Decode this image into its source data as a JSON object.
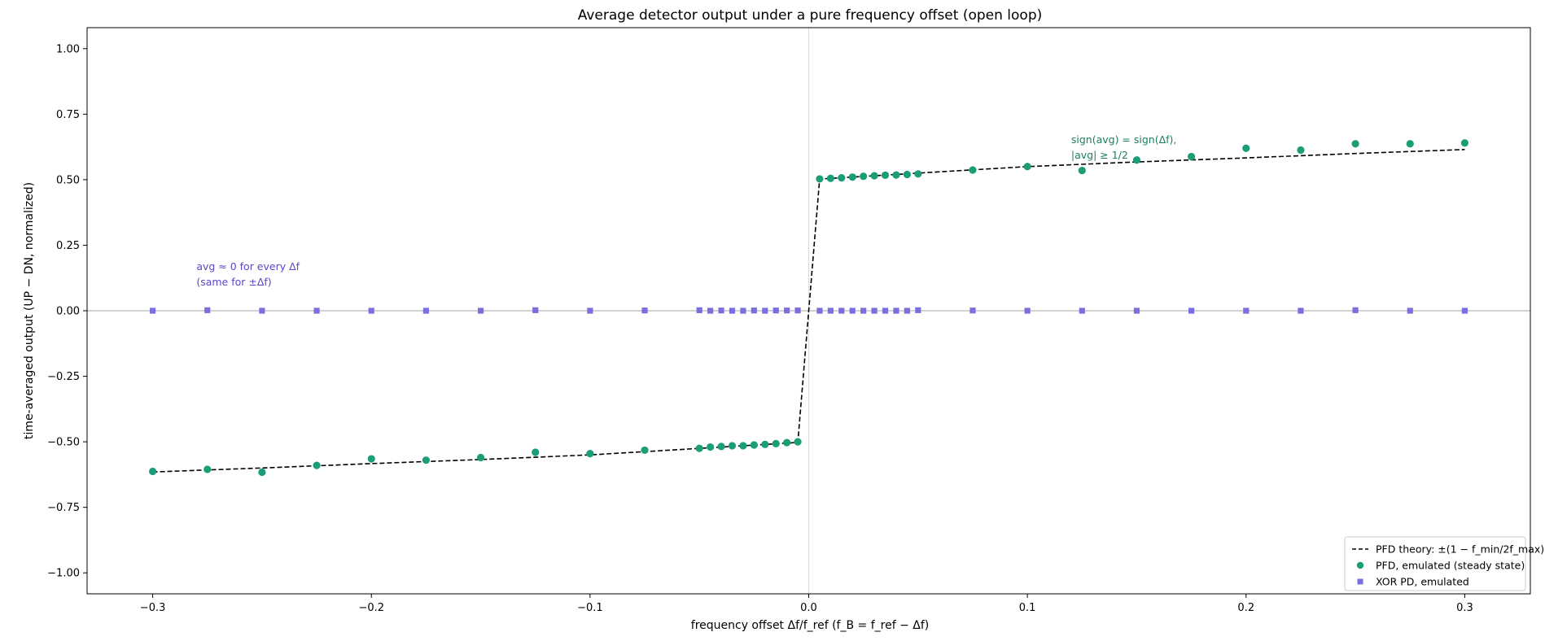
{
  "chart_data": {
    "type": "scatter",
    "title": "Average detector output under a pure frequency offset (open loop)",
    "xlabel": "frequency offset  Δf/f_ref   (f_B = f_ref − Δf)",
    "ylabel": "time-averaged output  (UP − DN, normalized)",
    "xlim": [
      -0.33,
      0.33
    ],
    "ylim": [
      -1.08,
      1.08
    ],
    "xticks": [
      -0.3,
      -0.2,
      -0.1,
      0.0,
      0.1,
      0.2,
      0.3
    ],
    "xtick_labels": [
      "−0.3",
      "−0.2",
      "−0.1",
      "0.0",
      "0.1",
      "0.2",
      "0.3"
    ],
    "yticks": [
      -1.0,
      -0.75,
      -0.5,
      -0.25,
      0.0,
      0.25,
      0.5,
      0.75,
      1.0
    ],
    "ytick_labels": [
      "−1.00",
      "−0.75",
      "−0.50",
      "−0.25",
      "0.00",
      "0.25",
      "0.50",
      "0.75",
      "1.00"
    ],
    "grid": false,
    "legend_position": "bottom-right",
    "series": [
      {
        "name": "PFD theory: ±(1 − f_min/2f_max)",
        "style": "dashed-line",
        "color": "#000000",
        "x": [
          -0.3,
          -0.25,
          -0.2,
          -0.15,
          -0.1,
          -0.05,
          -0.005,
          0.005,
          0.05,
          0.1,
          0.15,
          0.2,
          0.25,
          0.3
        ],
        "y": [
          -0.615,
          -0.6,
          -0.583,
          -0.5675,
          -0.55,
          -0.525,
          -0.5025,
          0.5025,
          0.525,
          0.55,
          0.5675,
          0.583,
          0.6,
          0.615
        ]
      },
      {
        "name": "PFD, emulated (steady state)",
        "style": "circle",
        "color": "#1b9e77",
        "x": [
          -0.3,
          -0.275,
          -0.25,
          -0.225,
          -0.2,
          -0.175,
          -0.15,
          -0.125,
          -0.1,
          -0.075,
          -0.05,
          -0.045,
          -0.04,
          -0.035,
          -0.03,
          -0.025,
          -0.02,
          -0.015,
          -0.01,
          -0.005,
          0.005,
          0.01,
          0.015,
          0.02,
          0.025,
          0.03,
          0.035,
          0.04,
          0.045,
          0.05,
          0.075,
          0.1,
          0.125,
          0.15,
          0.175,
          0.2,
          0.225,
          0.25,
          0.275,
          0.3
        ],
        "y": [
          -0.613,
          -0.605,
          -0.616,
          -0.59,
          -0.565,
          -0.57,
          -0.56,
          -0.54,
          -0.545,
          -0.532,
          -0.525,
          -0.52,
          -0.518,
          -0.515,
          -0.515,
          -0.512,
          -0.51,
          -0.507,
          -0.503,
          -0.5,
          0.503,
          0.505,
          0.507,
          0.51,
          0.513,
          0.515,
          0.517,
          0.518,
          0.52,
          0.522,
          0.537,
          0.55,
          0.535,
          0.575,
          0.588,
          0.62,
          0.613,
          0.637,
          0.637,
          0.64
        ]
      },
      {
        "name": "XOR PD, emulated",
        "style": "square",
        "color": "#7b6fe0",
        "x": [
          -0.3,
          -0.275,
          -0.25,
          -0.225,
          -0.2,
          -0.175,
          -0.15,
          -0.125,
          -0.1,
          -0.075,
          -0.05,
          -0.045,
          -0.04,
          -0.035,
          -0.03,
          -0.025,
          -0.02,
          -0.015,
          -0.01,
          -0.005,
          0.005,
          0.01,
          0.015,
          0.02,
          0.025,
          0.03,
          0.035,
          0.04,
          0.045,
          0.05,
          0.075,
          0.1,
          0.125,
          0.15,
          0.175,
          0.2,
          0.225,
          0.25,
          0.275,
          0.3
        ],
        "y": [
          0.0,
          0.002,
          0.0,
          0.0,
          0.0,
          0.0,
          0.0,
          0.002,
          0.0,
          0.001,
          0.002,
          0.0,
          0.001,
          0.0,
          0.0,
          0.001,
          0.0,
          0.001,
          0.001,
          0.001,
          0.0,
          0.0,
          0.0,
          0.0,
          0.0,
          0.0,
          0.0,
          0.0,
          0.0,
          0.002,
          0.001,
          0.0,
          0.0,
          0.0,
          0.0,
          0.0,
          0.0,
          0.002,
          0.0,
          0.0
        ]
      }
    ],
    "annotations": [
      {
        "lines": [
          "sign(avg) = sign(Δf),",
          "|avg|  ≥  1/2"
        ],
        "color": "#1b7f5e",
        "at": [
          0.12,
          0.64
        ]
      },
      {
        "lines": [
          "avg  ≈  0 for every Δf",
          "(same for ±Δf)"
        ],
        "color": "#5a48c8",
        "at": [
          -0.28,
          0.155
        ]
      }
    ]
  }
}
